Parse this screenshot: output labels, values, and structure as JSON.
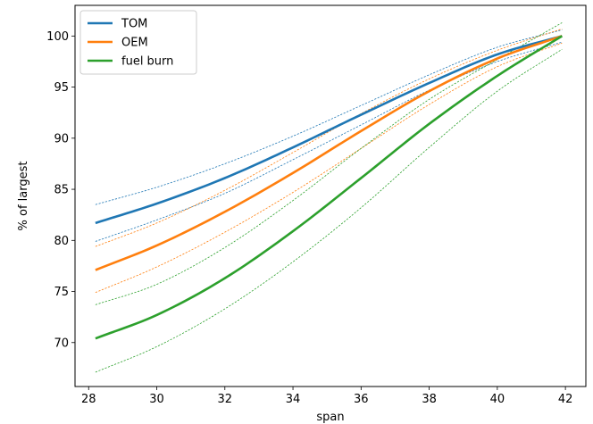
{
  "chart_data": {
    "type": "line",
    "title": "",
    "xlabel": "span",
    "ylabel": "% of largest",
    "xlim": [
      27.6,
      42.6
    ],
    "ylim": [
      65.7,
      103.0
    ],
    "xticks": [
      28,
      30,
      32,
      34,
      36,
      38,
      40,
      42
    ],
    "yticks": [
      70,
      75,
      80,
      85,
      90,
      95,
      100
    ],
    "grid": false,
    "legend": "upper-left",
    "series": [
      {
        "name": "TOM",
        "color": "#1f77b4",
        "x": [
          28.2,
          30,
          32,
          34,
          36,
          38,
          40,
          41.9
        ],
        "y": [
          81.7,
          83.6,
          86.1,
          89.1,
          92.3,
          95.4,
          98.2,
          100.0
        ],
        "band_upper": [
          83.5,
          85.2,
          87.5,
          90.2,
          93.2,
          96.2,
          98.9,
          100.6
        ],
        "band_lower": [
          79.9,
          82.0,
          84.6,
          87.9,
          91.3,
          94.7,
          97.5,
          99.4
        ]
      },
      {
        "name": "OEM",
        "color": "#ff7f0e",
        "x": [
          28.2,
          30,
          32,
          34,
          36,
          38,
          40,
          41.9
        ],
        "y": [
          77.1,
          79.5,
          82.8,
          86.6,
          90.7,
          94.6,
          97.8,
          100.0
        ],
        "band_upper": [
          79.4,
          81.7,
          84.9,
          88.6,
          92.4,
          95.8,
          98.6,
          100.7
        ],
        "band_lower": [
          74.9,
          77.4,
          80.8,
          84.7,
          89.0,
          93.3,
          97.0,
          99.3
        ]
      },
      {
        "name": "fuel burn",
        "color": "#2ca02c",
        "x": [
          28.2,
          30,
          32,
          34,
          36,
          38,
          40,
          41.9
        ],
        "y": [
          70.4,
          72.7,
          76.3,
          80.9,
          86.1,
          91.4,
          96.1,
          100.0
        ],
        "band_upper": [
          73.7,
          75.7,
          79.3,
          83.9,
          89.0,
          93.8,
          97.7,
          101.3
        ],
        "band_lower": [
          67.1,
          69.6,
          73.3,
          77.9,
          83.2,
          89.1,
          94.6,
          98.7
        ]
      }
    ]
  }
}
